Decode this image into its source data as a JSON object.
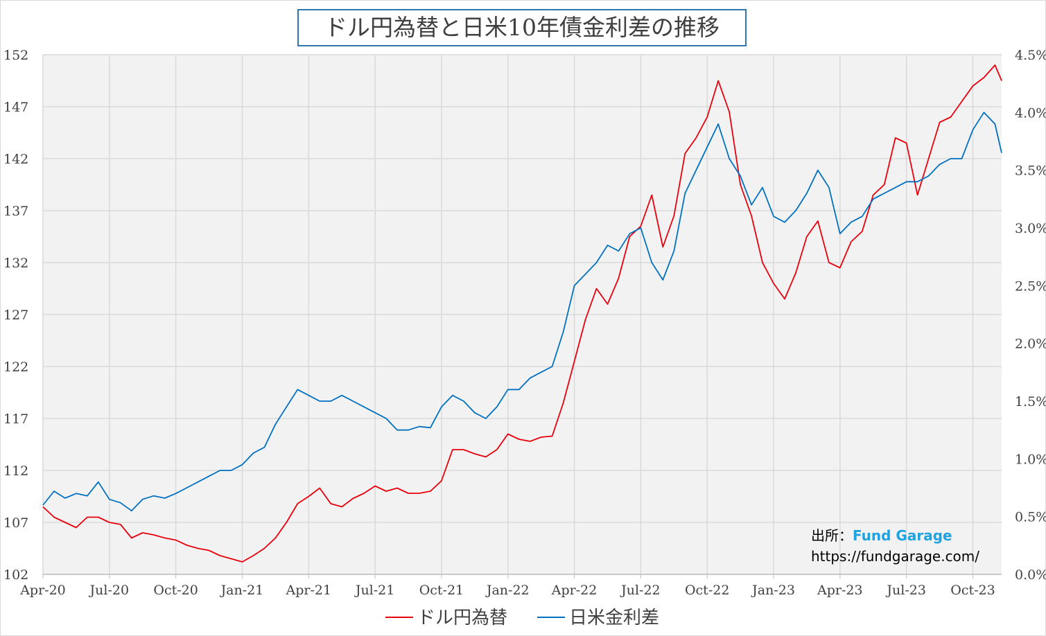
{
  "chart_data": {
    "type": "line",
    "title": "ドル円為替と日米10年債金利差の推移",
    "x_unit": "months since Apr-2020",
    "xlim": [
      0,
      43.3
    ],
    "x_ticks": [
      {
        "v": 0,
        "label": "Apr-20"
      },
      {
        "v": 3,
        "label": "Jul-20"
      },
      {
        "v": 6,
        "label": "Oct-20"
      },
      {
        "v": 9,
        "label": "Jan-21"
      },
      {
        "v": 12,
        "label": "Apr-21"
      },
      {
        "v": 15,
        "label": "Jul-21"
      },
      {
        "v": 18,
        "label": "Oct-21"
      },
      {
        "v": 21,
        "label": "Jan-22"
      },
      {
        "v": 24,
        "label": "Apr-22"
      },
      {
        "v": 27,
        "label": "Jul-22"
      },
      {
        "v": 30,
        "label": "Oct-22"
      },
      {
        "v": 33,
        "label": "Jan-23"
      },
      {
        "v": 36,
        "label": "Apr-23"
      },
      {
        "v": 39,
        "label": "Jul-23"
      },
      {
        "v": 42,
        "label": "Oct-23"
      }
    ],
    "y_left": {
      "ylim": [
        102,
        152
      ],
      "ticks": [
        "102",
        "107",
        "112",
        "117",
        "122",
        "127",
        "132",
        "137",
        "142",
        "147",
        "152"
      ]
    },
    "y_right": {
      "ylim": [
        0,
        4.5
      ],
      "ticks": [
        "0.0%",
        "0.5%",
        "1.0%",
        "1.5%",
        "2.0%",
        "2.5%",
        "3.0%",
        "3.5%",
        "4.0%",
        "4.5%"
      ]
    },
    "grid": true,
    "legend_position": "bottom",
    "series": [
      {
        "name": "ドル円為替",
        "axis": "left",
        "color": "#e8000b",
        "x": [
          0,
          0.5,
          1,
          1.5,
          2,
          2.5,
          3,
          3.5,
          4,
          4.5,
          5,
          5.5,
          6,
          6.5,
          7,
          7.5,
          8,
          8.5,
          9,
          9.5,
          10,
          10.5,
          11,
          11.5,
          12,
          12.5,
          13,
          13.5,
          14,
          14.5,
          15,
          15.5,
          16,
          16.5,
          17,
          17.5,
          18,
          18.5,
          19,
          19.5,
          20,
          20.5,
          21,
          21.5,
          22,
          22.5,
          23,
          23.5,
          24,
          24.5,
          25,
          25.5,
          26,
          26.5,
          27,
          27.5,
          28,
          28.5,
          29,
          29.5,
          30,
          30.5,
          31,
          31.5,
          32,
          32.5,
          33,
          33.5,
          34,
          34.5,
          35,
          35.5,
          36,
          36.5,
          37,
          37.5,
          38,
          38.5,
          39,
          39.5,
          40,
          40.5,
          41,
          41.5,
          42,
          42.5,
          43,
          43.3
        ],
        "values": [
          108.5,
          107.5,
          107,
          106.5,
          107.5,
          107.5,
          107,
          106.8,
          105.5,
          106,
          105.8,
          105.5,
          105.3,
          104.8,
          104.5,
          104.3,
          103.8,
          103.5,
          103.2,
          103.8,
          104.5,
          105.5,
          107,
          108.8,
          109.5,
          110.3,
          108.8,
          108.5,
          109.3,
          109.8,
          110.5,
          110,
          110.3,
          109.8,
          109.8,
          110,
          111,
          114,
          114,
          113.6,
          113.3,
          114,
          115.5,
          115,
          114.8,
          115.2,
          115.3,
          118.5,
          122.5,
          126.5,
          129.5,
          128,
          130.5,
          134.5,
          135.5,
          138.5,
          133.5,
          136.5,
          142.5,
          144,
          146,
          149.5,
          146.5,
          139.5,
          136.5,
          132,
          130,
          128.5,
          131,
          134.5,
          136,
          132,
          131.5,
          134,
          135,
          138.5,
          139.5,
          144,
          143.5,
          138.5,
          142,
          145.5,
          146,
          147.5,
          149,
          149.8,
          151,
          149.5
        ]
      },
      {
        "name": "日米金利差",
        "axis": "right",
        "color": "#0070c0",
        "x": [
          0,
          0.5,
          1,
          1.5,
          2,
          2.5,
          3,
          3.5,
          4,
          4.5,
          5,
          5.5,
          6,
          6.5,
          7,
          7.5,
          8,
          8.5,
          9,
          9.5,
          10,
          10.5,
          11,
          11.5,
          12,
          12.5,
          13,
          13.5,
          14,
          14.5,
          15,
          15.5,
          16,
          16.5,
          17,
          17.5,
          18,
          18.5,
          19,
          19.5,
          20,
          20.5,
          21,
          21.5,
          22,
          22.5,
          23,
          23.5,
          24,
          24.5,
          25,
          25.5,
          26,
          26.5,
          27,
          27.5,
          28,
          28.5,
          29,
          29.5,
          30,
          30.5,
          31,
          31.5,
          32,
          32.5,
          33,
          33.5,
          34,
          34.5,
          35,
          35.5,
          36,
          36.5,
          37,
          37.5,
          38,
          38.5,
          39,
          39.5,
          40,
          40.5,
          41,
          41.5,
          42,
          42.5,
          43,
          43.3
        ],
        "values": [
          0.6,
          0.72,
          0.66,
          0.7,
          0.68,
          0.8,
          0.65,
          0.62,
          0.55,
          0.65,
          0.68,
          0.66,
          0.7,
          0.75,
          0.8,
          0.85,
          0.9,
          0.9,
          0.95,
          1.05,
          1.1,
          1.3,
          1.45,
          1.6,
          1.55,
          1.5,
          1.5,
          1.55,
          1.5,
          1.45,
          1.4,
          1.35,
          1.25,
          1.25,
          1.28,
          1.27,
          1.45,
          1.55,
          1.5,
          1.4,
          1.35,
          1.45,
          1.6,
          1.6,
          1.7,
          1.75,
          1.8,
          2.1,
          2.5,
          2.6,
          2.7,
          2.85,
          2.8,
          2.95,
          3.0,
          2.7,
          2.55,
          2.8,
          3.3,
          3.5,
          3.7,
          3.9,
          3.6,
          3.45,
          3.2,
          3.35,
          3.1,
          3.05,
          3.15,
          3.3,
          3.5,
          3.35,
          2.95,
          3.05,
          3.1,
          3.25,
          3.3,
          3.35,
          3.4,
          3.4,
          3.45,
          3.55,
          3.6,
          3.6,
          3.85,
          4.0,
          3.9,
          3.65
        ]
      }
    ]
  },
  "source": {
    "label": "出所：",
    "brand": "Fund Garage",
    "url": "https://fundgarage.com/"
  }
}
